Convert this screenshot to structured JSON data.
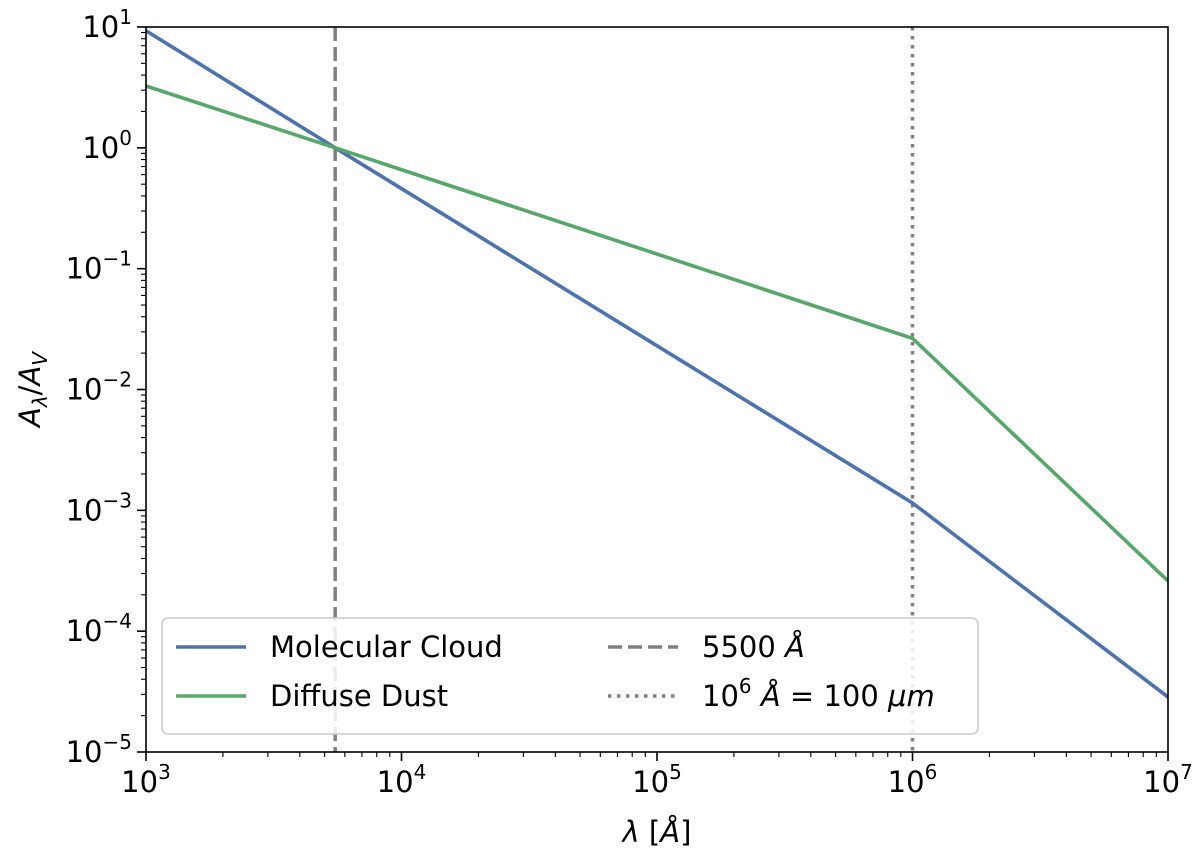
{
  "chart_data": {
    "type": "line",
    "xscale": "log",
    "yscale": "log",
    "xlim": [
      1000,
      10000000
    ],
    "ylim": [
      1e-05,
      10
    ],
    "xlabel": "λ [Å]",
    "ylabel": "Aλ/AV",
    "xticks": [
      {
        "base": "10",
        "exp": "3",
        "value": 1000
      },
      {
        "base": "10",
        "exp": "4",
        "value": 10000
      },
      {
        "base": "10",
        "exp": "5",
        "value": 100000
      },
      {
        "base": "10",
        "exp": "6",
        "value": 1000000
      },
      {
        "base": "10",
        "exp": "7",
        "value": 10000000
      }
    ],
    "yticks": [
      {
        "base": "10",
        "exp": "1",
        "value": 10
      },
      {
        "base": "10",
        "exp": "0",
        "value": 1
      },
      {
        "base": "10",
        "exp": "−1",
        "value": 0.1
      },
      {
        "base": "10",
        "exp": "−2",
        "value": 0.01
      },
      {
        "base": "10",
        "exp": "−3",
        "value": 0.001
      },
      {
        "base": "10",
        "exp": "−4",
        "value": 0.0001
      },
      {
        "base": "10",
        "exp": "−5",
        "value": 1e-05
      }
    ],
    "series": [
      {
        "name": "Molecular Cloud",
        "color": "#4c72b0",
        "x": [
          1000,
          5500,
          1000000,
          10000000
        ],
        "y": [
          9.3,
          1.0,
          0.00115,
          2.85e-05
        ]
      },
      {
        "name": "Diffuse Dust",
        "color": "#55a868",
        "x": [
          1000,
          5500,
          1000000,
          10000000
        ],
        "y": [
          3.25,
          1.0,
          0.0265,
          0.00026
        ]
      }
    ],
    "vlines": [
      {
        "name": "5500 Å",
        "x": 5500,
        "style": "dashed",
        "color": "#808080"
      },
      {
        "name": "10^6 Å = 100 μm",
        "x": 1000000,
        "style": "dotted",
        "color": "#808080"
      }
    ],
    "legend": {
      "placement": "lower-left",
      "entries": [
        {
          "label": "Molecular Cloud",
          "kind": "series",
          "index": 0
        },
        {
          "label": "Diffuse Dust",
          "kind": "series",
          "index": 1
        },
        {
          "label": "5500 Å",
          "kind": "vline",
          "index": 0
        },
        {
          "label_parts": [
            "10",
            "6",
            " Å = 100 ",
            "μm"
          ],
          "kind": "vline",
          "index": 1
        }
      ]
    },
    "grid": false
  }
}
